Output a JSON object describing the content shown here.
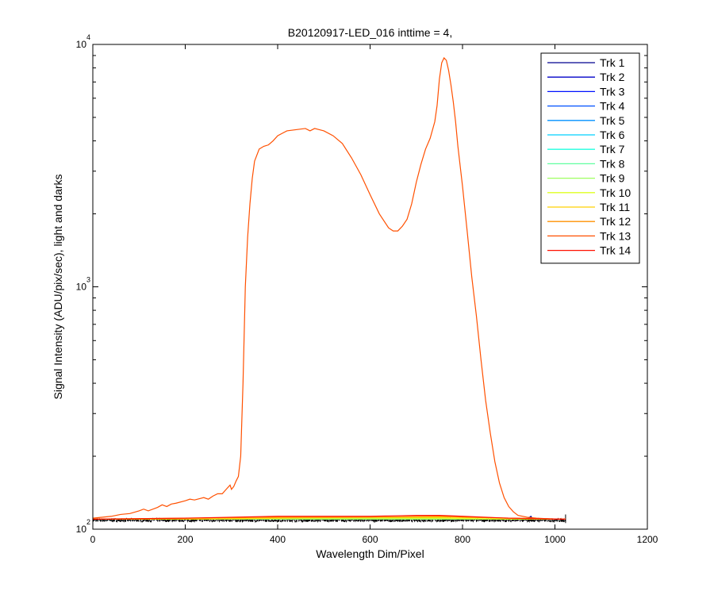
{
  "chart_data": {
    "type": "line",
    "title": "B20120917-LED_016 inttime = 4,",
    "xlabel": "Wavelength Dim/Pixel",
    "ylabel": "Signal Intensity (ADU/pix/sec), light and darks",
    "xlim": [
      0,
      1200
    ],
    "ylim": [
      100,
      10000
    ],
    "yscale": "log",
    "grid": false,
    "legend_position": "top-right",
    "x_ticks": [
      0,
      200,
      400,
      600,
      800,
      1000,
      1200
    ],
    "x_tick_labels": [
      "0",
      "200",
      "400",
      "600",
      "800",
      "1000",
      "1200"
    ],
    "y_ticks": [
      100,
      1000,
      10000
    ],
    "y_tick_labels": [
      {
        "base": "10",
        "exp": "2"
      },
      {
        "base": "10",
        "exp": "3"
      },
      {
        "base": "10",
        "exp": "4"
      }
    ],
    "series": [
      {
        "name": "Trk 1",
        "color": "#00008f",
        "x": [
          0,
          200,
          400,
          600,
          800,
          940,
          948,
          952,
          960,
          1023
        ],
        "y": [
          110,
          110,
          110,
          110,
          110,
          110,
          113,
          110,
          110,
          110
        ]
      },
      {
        "name": "Trk 2",
        "color": "#0000ca",
        "x": [
          0,
          1023
        ],
        "y": [
          110,
          110
        ]
      },
      {
        "name": "Trk 3",
        "color": "#0010ff",
        "x": [
          0,
          1023
        ],
        "y": [
          110,
          110
        ]
      },
      {
        "name": "Trk 4",
        "color": "#0050ff",
        "x": [
          0,
          1023
        ],
        "y": [
          110,
          110
        ]
      },
      {
        "name": "Trk 5",
        "color": "#0090ff",
        "x": [
          0,
          1023
        ],
        "y": [
          110,
          110
        ]
      },
      {
        "name": "Trk 6",
        "color": "#00d0ff",
        "x": [
          0,
          1023
        ],
        "y": [
          110,
          110
        ]
      },
      {
        "name": "Trk 7",
        "color": "#20ffdf",
        "x": [
          0,
          1023
        ],
        "y": [
          110,
          110
        ]
      },
      {
        "name": "Trk 8",
        "color": "#60ff9f",
        "x": [
          0,
          1023
        ],
        "y": [
          110,
          110
        ]
      },
      {
        "name": "Trk 9",
        "color": "#9fff60",
        "x": [
          0,
          1023
        ],
        "y": [
          110,
          110
        ]
      },
      {
        "name": "Trk 10",
        "color": "#dfff20",
        "x": [
          0,
          200,
          400,
          600,
          750,
          900,
          1023
        ],
        "y": [
          110,
          110,
          111,
          111,
          111,
          110,
          110
        ]
      },
      {
        "name": "Trk 11",
        "color": "#ffd000",
        "x": [
          0,
          200,
          400,
          600,
          750,
          900,
          1023
        ],
        "y": [
          110,
          110,
          111,
          112,
          112,
          111,
          110
        ]
      },
      {
        "name": "Trk 12",
        "color": "#ff9000",
        "x": [
          0,
          200,
          400,
          600,
          750,
          900,
          1023
        ],
        "y": [
          110,
          111,
          112,
          112,
          113,
          111,
          110
        ]
      },
      {
        "name": "Trk 13",
        "color": "#ff5000",
        "x": [
          0,
          40,
          60,
          80,
          100,
          110,
          120,
          140,
          150,
          160,
          170,
          180,
          200,
          210,
          220,
          240,
          250,
          260,
          270,
          280,
          290,
          297,
          300,
          305,
          310,
          315,
          320,
          325,
          330,
          335,
          340,
          345,
          350,
          360,
          370,
          380,
          390,
          400,
          410,
          420,
          440,
          460,
          470,
          480,
          490,
          500,
          520,
          540,
          560,
          580,
          600,
          620,
          640,
          650,
          660,
          670,
          680,
          690,
          700,
          710,
          720,
          730,
          740,
          745,
          750,
          755,
          760,
          765,
          770,
          775,
          780,
          785,
          790,
          800,
          810,
          820,
          830,
          840,
          850,
          860,
          870,
          880,
          890,
          900,
          910,
          920,
          940,
          960,
          1000,
          1023
        ],
        "y": [
          111,
          113,
          115,
          116,
          119,
          121,
          119,
          123,
          126,
          124,
          127,
          128,
          131,
          133,
          132,
          135,
          133,
          137,
          140,
          140,
          147,
          152,
          146,
          150,
          158,
          165,
          200,
          400,
          1000,
          1600,
          2200,
          2800,
          3300,
          3700,
          3800,
          3850,
          4000,
          4200,
          4300,
          4400,
          4450,
          4500,
          4400,
          4500,
          4450,
          4400,
          4200,
          3900,
          3400,
          2900,
          2400,
          2000,
          1750,
          1700,
          1700,
          1780,
          1900,
          2200,
          2700,
          3200,
          3700,
          4100,
          4800,
          5600,
          7200,
          8400,
          8800,
          8600,
          7800,
          6800,
          5800,
          4800,
          3800,
          2600,
          1700,
          1100,
          760,
          500,
          340,
          250,
          190,
          155,
          135,
          124,
          118,
          114,
          112,
          111,
          110,
          110
        ]
      },
      {
        "name": "Trk 14",
        "color": "#ff1000",
        "x": [
          0,
          200,
          300,
          400,
          500,
          600,
          700,
          750,
          800,
          900,
          1023
        ],
        "y": [
          110,
          111,
          112,
          113,
          113,
          113,
          114,
          114,
          113,
          111,
          110
        ]
      }
    ]
  }
}
